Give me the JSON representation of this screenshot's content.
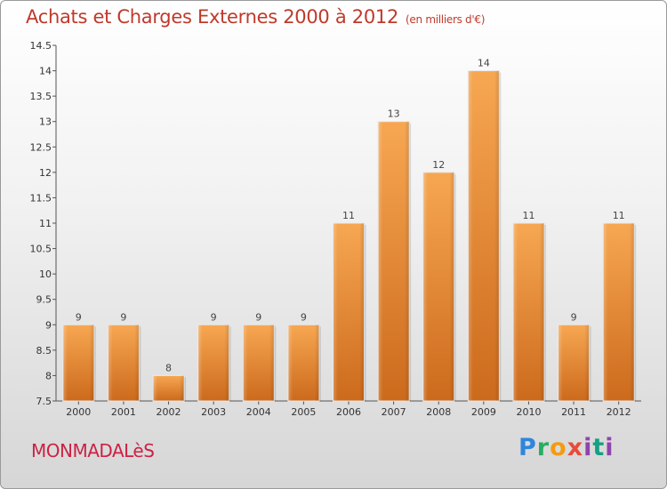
{
  "header": {
    "title": "Achats et Charges Externes 2000 à 2012",
    "subtitle": "(en milliers d'€)"
  },
  "footer": {
    "commune": "MONMADALèS",
    "logo_letters": [
      "P",
      "r",
      "o",
      "x",
      "i",
      "t",
      "i"
    ]
  },
  "chart_data": {
    "type": "bar",
    "title": "Achats et Charges Externes 2000 à 2012",
    "subtitle": "(en milliers d'€)",
    "categories": [
      "2000",
      "2001",
      "2002",
      "2003",
      "2004",
      "2005",
      "2006",
      "2007",
      "2008",
      "2009",
      "2010",
      "2011",
      "2012"
    ],
    "values": [
      9,
      9,
      8,
      9,
      9,
      9,
      11,
      13,
      12,
      14,
      11,
      9,
      11
    ],
    "ylim": [
      7.5,
      14.5
    ],
    "yticks": [
      "7.5",
      "8",
      "8.5",
      "9",
      "9.5",
      "10",
      "10.5",
      "11",
      "11.5",
      "12",
      "12.5",
      "13",
      "13.5",
      "14",
      "14.5"
    ],
    "grid": false,
    "bar_color": "#f0a04b"
  }
}
